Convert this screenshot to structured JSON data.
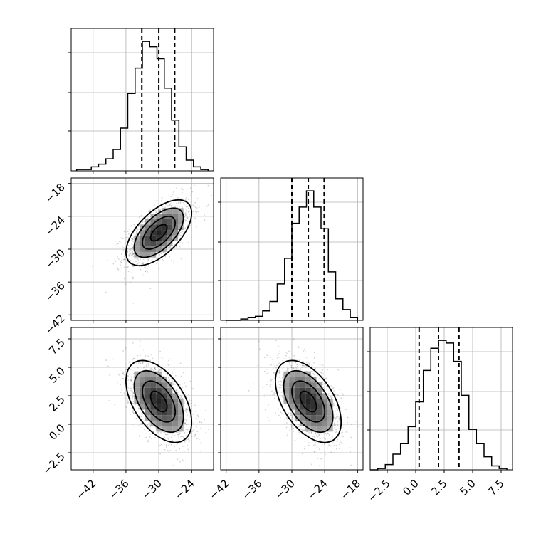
{
  "chart_data": {
    "type": "corner",
    "parameters": [
      {
        "range": [
          -46,
          -20
        ],
        "ticks": [
          -42,
          -36,
          -30,
          -24
        ],
        "tick_labels": [
          "−42",
          "−36",
          "−30",
          "−24"
        ],
        "quantiles": [
          -33.1,
          -30.0,
          -27.1
        ]
      },
      {
        "range": [
          -43,
          -17
        ],
        "ticks": [
          -42,
          -36,
          -30,
          -24,
          -18
        ],
        "tick_labels": [
          "−42",
          "−36",
          "−30",
          "−24",
          "−18"
        ],
        "quantiles": [
          -30.0,
          -27.0,
          -24.1
        ]
      },
      {
        "range": [
          -4,
          8.5
        ],
        "ticks": [
          -2.5,
          0.0,
          2.5,
          5.0,
          7.5
        ],
        "tick_labels": [
          "−2.5",
          "0.0",
          "2.5",
          "5.0",
          "7.5"
        ],
        "quantiles": [
          0.3,
          2.0,
          3.8
        ]
      }
    ],
    "histograms": [
      {
        "param": 0,
        "bin_edges": [
          -45,
          -43.67,
          -42.33,
          -41,
          -39.67,
          -38.33,
          -37,
          -35.67,
          -34.33,
          -33,
          -31.67,
          -30.33,
          -29,
          -27.67,
          -26.33,
          -25,
          -23.67,
          -22.33,
          -21
        ],
        "counts": [
          1,
          1,
          3,
          5,
          9,
          16,
          32,
          58,
          77,
          97,
          93,
          84,
          62,
          38,
          18,
          8,
          3,
          1
        ]
      },
      {
        "param": 1,
        "bin_edges": [
          -42,
          -40.67,
          -39.33,
          -38,
          -36.67,
          -35.33,
          -34,
          -32.67,
          -31.33,
          -30,
          -28.67,
          -27.33,
          -26,
          -24.67,
          -23.33,
          -22,
          -20.67,
          -19.33,
          -18
        ],
        "counts": [
          0,
          0,
          1,
          2,
          3,
          7,
          14,
          27,
          46,
          72,
          84,
          96,
          84,
          68,
          36,
          16,
          8,
          2
        ]
      },
      {
        "param": 2,
        "bin_edges": [
          -4,
          -3.33,
          -2.67,
          -2,
          -1.33,
          -0.67,
          0,
          0.67,
          1.33,
          2,
          2.67,
          3.33,
          4,
          4.67,
          5.33,
          6,
          6.67,
          7.33,
          8
        ],
        "counts": [
          0,
          1,
          4,
          12,
          20,
          33,
          52,
          76,
          93,
          99,
          97,
          83,
          57,
          31,
          20,
          10,
          3,
          1
        ]
      }
    ],
    "joint_distributions": [
      {
        "x_param": 0,
        "y_param": 1,
        "mean": [
          -30.0,
          -27.0
        ],
        "sd": [
          3.0,
          3.0
        ],
        "correlation": 0.6
      },
      {
        "x_param": 0,
        "y_param": 2,
        "mean": [
          -30.0,
          2.0
        ],
        "sd": [
          3.0,
          1.8
        ],
        "correlation": -0.5
      },
      {
        "x_param": 1,
        "y_param": 2,
        "mean": [
          -27.0,
          2.0
        ],
        "sd": [
          3.0,
          1.8
        ],
        "correlation": -0.5
      }
    ],
    "contour_levels_sigma": [
      0.5,
      1.0,
      1.5,
      2.0
    ],
    "grid": true,
    "xlabel": "",
    "ylabel": "",
    "title": ""
  }
}
